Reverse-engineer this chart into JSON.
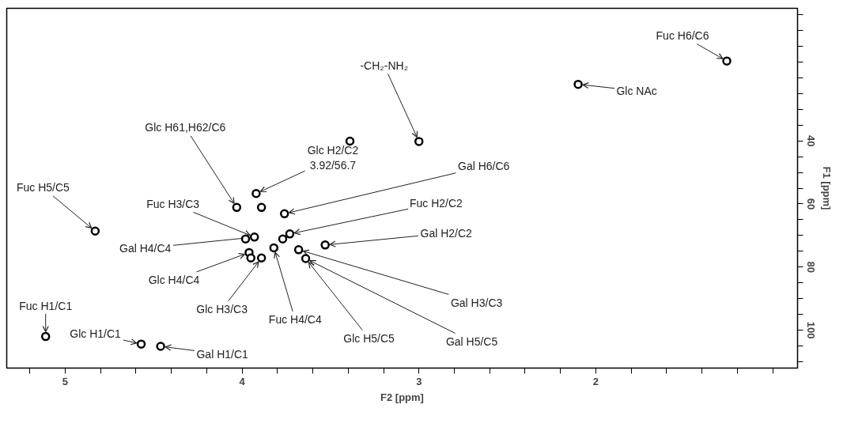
{
  "chart_data": {
    "type": "scatter",
    "xlabel": "F2 [ppm]",
    "ylabel": "F1 [ppm]",
    "x": [
      5.11,
      4.57,
      4.46,
      4.83,
      3.92,
      4.03,
      3.89,
      3.76,
      3.93,
      3.98,
      3.73,
      3.77,
      3.82,
      3.96,
      3.89,
      3.95,
      3.68,
      3.64,
      3.53,
      3.39,
      3.0,
      2.1,
      1.26
    ],
    "values": [
      102.0,
      104.4,
      105.1,
      68.6,
      56.7,
      61.1,
      61.1,
      63.1,
      70.5,
      71.1,
      69.5,
      71.1,
      73.9,
      75.4,
      77.1,
      77.1,
      74.5,
      77.3,
      73.0,
      40.1,
      40.2,
      22.1,
      14.7
    ],
    "color": "#000000",
    "marker": "circle",
    "grid": false,
    "xlim": [
      5.33,
      0.86
    ],
    "ylim": [
      112,
      -2
    ],
    "xticks": [
      {
        "value": 5.2,
        "label": null
      },
      5,
      {
        "value": 4.8,
        "label": null
      },
      {
        "value": 4.6,
        "label": null
      },
      {
        "value": 4.4,
        "label": null
      },
      {
        "value": 4.2,
        "label": null
      },
      4,
      {
        "value": 3.8,
        "label": null
      },
      {
        "value": 3.6,
        "label": null
      },
      {
        "value": 3.4,
        "label": null
      },
      {
        "value": 3.2,
        "label": null
      },
      3,
      {
        "value": 2.8,
        "label": null
      },
      {
        "value": 2.6,
        "label": null
      },
      {
        "value": 2.4,
        "label": null
      },
      {
        "value": 2.2,
        "label": null
      },
      2,
      {
        "value": 1.8,
        "label": null
      },
      {
        "value": 1.6,
        "label": null
      },
      {
        "value": 1.4,
        "label": null
      },
      {
        "value": 1.2,
        "label": null
      },
      {
        "value": 1.0,
        "label": null
      }
    ],
    "yticks": [
      {
        "value": 0,
        "label": null
      },
      {
        "value": 5,
        "label": null
      },
      {
        "value": 10,
        "label": null
      },
      {
        "value": 15,
        "label": null
      },
      {
        "value": 20,
        "label": null
      },
      {
        "value": 25,
        "label": null
      },
      {
        "value": 30,
        "label": null
      },
      {
        "value": 35,
        "label": null
      },
      40,
      {
        "value": 45,
        "label": null
      },
      {
        "value": 50,
        "label": null
      },
      {
        "value": 55,
        "label": null
      },
      60,
      {
        "value": 65,
        "label": null
      },
      {
        "value": 70,
        "label": null
      },
      {
        "value": 75,
        "label": null
      },
      80,
      {
        "value": 85,
        "label": null
      },
      {
        "value": 90,
        "label": null
      },
      {
        "value": 95,
        "label": null
      },
      100,
      {
        "value": 105,
        "label": null
      },
      {
        "value": 110,
        "label": null
      }
    ],
    "annotations": [
      {
        "text": "Fuc H1/C1",
        "x": 5.11,
        "y": 102.0
      },
      {
        "text": "Glc H1/C1",
        "x": 4.57,
        "y": 104.4
      },
      {
        "text": "Gal H1/C1",
        "x": 4.46,
        "y": 105.1
      },
      {
        "text": "Fuc H5/C5",
        "x": 4.83,
        "y": 68.6
      },
      {
        "text": "Fuc H3/C3",
        "x": 3.93,
        "y": 70.5
      },
      {
        "text": "Gal H4/C4",
        "x": 3.93,
        "y": 70.5
      },
      {
        "text": "Glc H4/C4",
        "x": 3.96,
        "y": 75.4
      },
      {
        "text": "Glc H3/C3",
        "x": 3.89,
        "y": 77.1
      },
      {
        "text": "Fuc H4/C4",
        "x": 3.82,
        "y": 73.9
      },
      {
        "text": "Glc H5/C5",
        "x": 3.64,
        "y": 77.3
      },
      {
        "text": "Gal H5/C5",
        "x": 3.64,
        "y": 77.3
      },
      {
        "text": "Gal H3/C3",
        "x": 3.68,
        "y": 74.5
      },
      {
        "text": "Gal H2/C2",
        "x": 3.53,
        "y": 73.0
      },
      {
        "text": "Fuc H2/C2",
        "x": 3.73,
        "y": 69.5
      },
      {
        "text": "Gal H6/C6",
        "x": 3.76,
        "y": 63.1
      },
      {
        "text": "Glc H2/C2\n3.92/56.7",
        "x": 3.92,
        "y": 56.7
      },
      {
        "text": "Glc H61,H62/C6",
        "x": 4.03,
        "y": 61.1
      },
      {
        "text": "-CH₂-NH₂",
        "x": 3.0,
        "y": 40.2
      },
      {
        "text": "Glc NAc",
        "x": 2.1,
        "y": 22.1
      },
      {
        "text": "Fuc H6/C6",
        "x": 1.26,
        "y": 14.7
      }
    ]
  }
}
